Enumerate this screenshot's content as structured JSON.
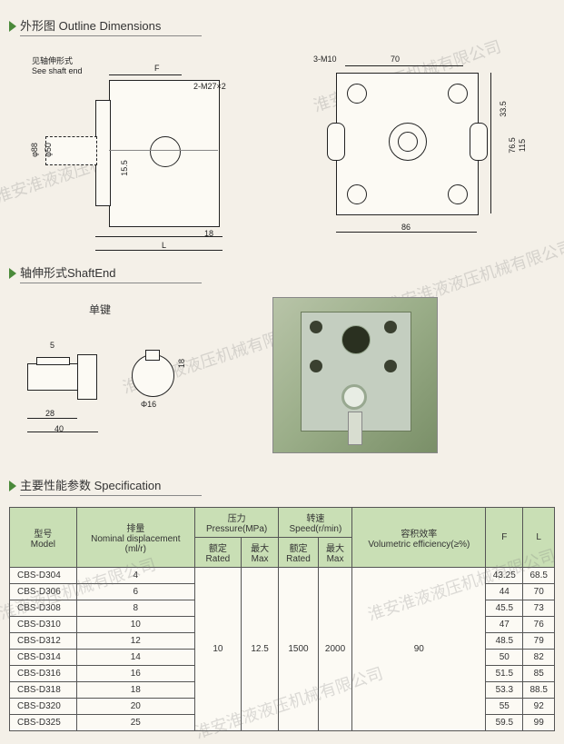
{
  "watermark_text": "淮安淮液液压机械有限公司",
  "sections": {
    "outline": {
      "zh": "外形图",
      "en": "Outline Dimensions"
    },
    "shaft": {
      "zh": "轴伸形式",
      "en": "ShaftEnd"
    },
    "spec": {
      "zh": "主要性能参数",
      "en": "Specification"
    }
  },
  "shaft_key_label": "单键",
  "outline_dims": {
    "see_shaft": "见轴伸形式\nSee shaft end",
    "F": "F",
    "two_m27": "2-M27×2",
    "eighteen": "18",
    "L": "L",
    "three_m10": "3-M10",
    "seventy": "70",
    "thirty35": "33.5",
    "seventy65": "76.5",
    "one15": "115",
    "eighty6": "86",
    "phi88": "φ88",
    "phi50": "φ50",
    "one55": "15.5"
  },
  "shaft_dims": {
    "five": "5",
    "twenty8": "28",
    "forty": "40",
    "eighteen": "18",
    "phi16": "Φ16"
  },
  "spec_table": {
    "headers": {
      "model_zh": "型号",
      "model_en": "Model",
      "disp_zh": "排量",
      "disp_en": "Nominal displacement",
      "disp_unit": "(ml/r)",
      "press_zh": "压力",
      "press_en": "Pressure(MPa)",
      "press_rated_zh": "额定",
      "press_rated_en": "Rated",
      "press_max_zh": "最大",
      "press_max_en": "Max",
      "speed_zh": "转速",
      "speed_en": "Speed(r/min)",
      "speed_rated_zh": "额定",
      "speed_rated_en": "Rated",
      "speed_max_zh": "最大",
      "speed_max_en": "Max",
      "eff_zh": "容积效率",
      "eff_en": "Volumetric efficiency(≥%)",
      "F": "F",
      "L": "L"
    },
    "shared": {
      "press_rated": "10",
      "press_max": "12.5",
      "speed_rated": "1500",
      "speed_max": "2000",
      "eff": "90"
    },
    "rows": [
      {
        "model": "CBS-D304",
        "disp": "4",
        "F": "43.25",
        "L": "68.5"
      },
      {
        "model": "CBS-D306",
        "disp": "6",
        "F": "44",
        "L": "70"
      },
      {
        "model": "CBS-D308",
        "disp": "8",
        "F": "45.5",
        "L": "73"
      },
      {
        "model": "CBS-D310",
        "disp": "10",
        "F": "47",
        "L": "76"
      },
      {
        "model": "CBS-D312",
        "disp": "12",
        "F": "48.5",
        "L": "79"
      },
      {
        "model": "CBS-D314",
        "disp": "14",
        "F": "50",
        "L": "82"
      },
      {
        "model": "CBS-D316",
        "disp": "16",
        "F": "51.5",
        "L": "85"
      },
      {
        "model": "CBS-D318",
        "disp": "18",
        "F": "53.3",
        "L": "88.5"
      },
      {
        "model": "CBS-D320",
        "disp": "20",
        "F": "55",
        "L": "92"
      },
      {
        "model": "CBS-D325",
        "disp": "25",
        "F": "59.5",
        "L": "99"
      }
    ]
  }
}
